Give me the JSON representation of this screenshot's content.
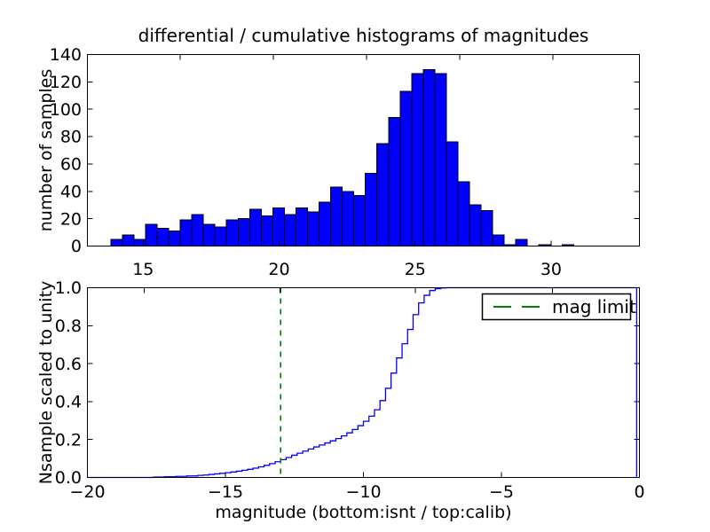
{
  "figure": {
    "background": "#ffffff",
    "title": "differential / cumulative histograms of magnitudes"
  },
  "chart_data": [
    {
      "type": "bar",
      "subtype": "histogram",
      "title": "differential / cumulative histograms of magnitudes",
      "xlabel": "",
      "ylabel": "number of samples",
      "xlim": [
        12.95,
        33.25
      ],
      "ylim": [
        0,
        140
      ],
      "xticks": [
        15,
        20,
        25,
        30
      ],
      "xticklabels": [
        "15",
        "20",
        "25",
        "30"
      ],
      "yticks": [
        0,
        20,
        40,
        60,
        80,
        100,
        120,
        140
      ],
      "yticklabels": [
        "0",
        "20",
        "40",
        "60",
        "80",
        "100",
        "120",
        "140"
      ],
      "top_spine_ticks": [
        16.36,
        19.79,
        23.21,
        26.64,
        30.07
      ],
      "grid": false,
      "bar_color": "#0000ff",
      "bar_edge_color": "#000000",
      "bins": {
        "start": 13.81,
        "width": 0.4255
      },
      "counts": [
        5,
        8,
        5,
        16,
        13,
        11,
        19,
        23,
        16,
        14,
        19,
        20,
        27,
        22,
        28,
        23,
        28,
        25,
        32,
        43,
        40,
        37,
        53,
        75,
        94,
        113,
        126,
        129,
        126,
        76,
        47,
        30,
        26,
        8,
        1,
        5,
        0,
        1,
        0,
        1
      ]
    },
    {
      "type": "line",
      "subtype": "cumulative-step",
      "xlabel": "magnitude (bottom:isnt / top:calib)",
      "ylabel": "Nsample scaled to unity",
      "xlim": [
        -20,
        0
      ],
      "ylim": [
        0.0,
        1.0
      ],
      "xticks": [
        -20,
        -15,
        -10,
        -5,
        0
      ],
      "xticklabels": [
        "−20",
        "−15",
        "−10",
        "−5",
        "0"
      ],
      "yticks": [
        0.0,
        0.2,
        0.4,
        0.6,
        0.8,
        1.0
      ],
      "yticklabels": [
        "0.0",
        "0.2",
        "0.4",
        "0.6",
        "0.8",
        "1.0"
      ],
      "top_spine_ticks": [
        -17.95,
        -13.03,
        -8.12,
        -3.15
      ],
      "grid": false,
      "line_color": "#0000ff",
      "steps": [
        [
          -17.6,
          0.002
        ],
        [
          -17.2,
          0.004
        ],
        [
          -16.8,
          0.006
        ],
        [
          -16.4,
          0.008
        ],
        [
          -16.0,
          0.011
        ],
        [
          -15.8,
          0.013
        ],
        [
          -15.6,
          0.016
        ],
        [
          -15.4,
          0.019
        ],
        [
          -15.2,
          0.022
        ],
        [
          -15.0,
          0.025
        ],
        [
          -14.8,
          0.029
        ],
        [
          -14.6,
          0.033
        ],
        [
          -14.4,
          0.038
        ],
        [
          -14.2,
          0.043
        ],
        [
          -14.0,
          0.049
        ],
        [
          -13.8,
          0.056
        ],
        [
          -13.6,
          0.064
        ],
        [
          -13.4,
          0.073
        ],
        [
          -13.2,
          0.083
        ],
        [
          -13.0,
          0.094
        ],
        [
          -12.8,
          0.105
        ],
        [
          -12.6,
          0.117
        ],
        [
          -12.4,
          0.128
        ],
        [
          -12.2,
          0.139
        ],
        [
          -12.0,
          0.15
        ],
        [
          -11.8,
          0.161
        ],
        [
          -11.6,
          0.171
        ],
        [
          -11.4,
          0.182
        ],
        [
          -11.2,
          0.193
        ],
        [
          -11.0,
          0.205
        ],
        [
          -10.8,
          0.219
        ],
        [
          -10.6,
          0.235
        ],
        [
          -10.4,
          0.253
        ],
        [
          -10.2,
          0.273
        ],
        [
          -10.0,
          0.296
        ],
        [
          -9.8,
          0.323
        ],
        [
          -9.6,
          0.357
        ],
        [
          -9.4,
          0.405
        ],
        [
          -9.2,
          0.47
        ],
        [
          -9.0,
          0.55
        ],
        [
          -8.8,
          0.63
        ],
        [
          -8.6,
          0.705
        ],
        [
          -8.4,
          0.78
        ],
        [
          -8.2,
          0.858
        ],
        [
          -8.0,
          0.92
        ],
        [
          -7.8,
          0.96
        ],
        [
          -7.6,
          0.985
        ],
        [
          -7.4,
          0.995
        ],
        [
          -7.2,
          0.999
        ],
        [
          -7.0,
          1.0
        ],
        [
          -0.1,
          1.0
        ],
        [
          -0.1,
          0.0
        ]
      ],
      "vline": {
        "x": -13.0,
        "color": "#008000",
        "style": "dashed",
        "name": "mag limit"
      },
      "legend": {
        "label": "mag limit",
        "line_color": "#008000",
        "position": "upper right"
      }
    }
  ]
}
